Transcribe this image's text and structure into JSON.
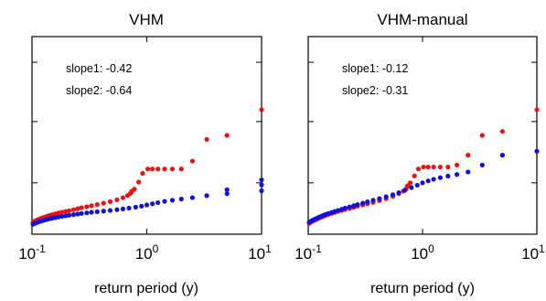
{
  "colors": {
    "series_a": "#ee1111",
    "series_b": "#1111dd",
    "axis": "#000000"
  },
  "chart_data": [
    {
      "type": "scatter",
      "title": "VHM",
      "xlabel": "return period (y)",
      "ylabel": "",
      "xscale": "log",
      "xlim": [
        0.1,
        10
      ],
      "ylim": [
        0,
        1
      ],
      "x_ticks": [
        {
          "base": "10",
          "exp": "-1",
          "value": 0.1
        },
        {
          "base": "10",
          "exp": "0",
          "value": 1
        },
        {
          "base": "10",
          "exp": "1",
          "value": 10
        }
      ],
      "y_ticks": [
        0.26,
        0.57,
        0.87
      ],
      "grid": false,
      "annotations": [
        "slope1: -0.42",
        "slope2: -0.64"
      ],
      "series": [
        {
          "color": "#ee1111",
          "points": [
            [
              0.102,
              0.06
            ],
            [
              0.105,
              0.065
            ],
            [
              0.109,
              0.07
            ],
            [
              0.113,
              0.074
            ],
            [
              0.118,
              0.079
            ],
            [
              0.123,
              0.083
            ],
            [
              0.129,
              0.087
            ],
            [
              0.135,
              0.091
            ],
            [
              0.142,
              0.095
            ],
            [
              0.15,
              0.099
            ],
            [
              0.16,
              0.103
            ],
            [
              0.17,
              0.107
            ],
            [
              0.182,
              0.111
            ],
            [
              0.196,
              0.115
            ],
            [
              0.21,
              0.119
            ],
            [
              0.23,
              0.124
            ],
            [
              0.25,
              0.129
            ],
            [
              0.27,
              0.134
            ],
            [
              0.3,
              0.139
            ],
            [
              0.33,
              0.144
            ],
            [
              0.37,
              0.15
            ],
            [
              0.42,
              0.157
            ],
            [
              0.48,
              0.165
            ],
            [
              0.55,
              0.174
            ],
            [
              0.62,
              0.185
            ],
            [
              0.68,
              0.196
            ],
            [
              0.72,
              0.206
            ],
            [
              0.74,
              0.217
            ],
            [
              0.78,
              0.228
            ],
            [
              0.85,
              0.264
            ],
            [
              0.92,
              0.308
            ],
            [
              1.02,
              0.33
            ],
            [
              1.12,
              0.33
            ],
            [
              1.25,
              0.33
            ],
            [
              1.43,
              0.33
            ],
            [
              1.67,
              0.33
            ],
            [
              2.0,
              0.33
            ],
            [
              2.5,
              0.37
            ],
            [
              3.33,
              0.48
            ],
            [
              5.0,
              0.5
            ],
            [
              10.0,
              0.63
            ]
          ]
        },
        {
          "color": "#1111dd",
          "points": [
            [
              0.102,
              0.05
            ],
            [
              0.105,
              0.054
            ],
            [
              0.109,
              0.058
            ],
            [
              0.113,
              0.061
            ],
            [
              0.118,
              0.065
            ],
            [
              0.123,
              0.068
            ],
            [
              0.129,
              0.072
            ],
            [
              0.135,
              0.075
            ],
            [
              0.142,
              0.078
            ],
            [
              0.15,
              0.081
            ],
            [
              0.16,
              0.084
            ],
            [
              0.17,
              0.087
            ],
            [
              0.182,
              0.09
            ],
            [
              0.196,
              0.093
            ],
            [
              0.21,
              0.096
            ],
            [
              0.23,
              0.099
            ],
            [
              0.25,
              0.102
            ],
            [
              0.27,
              0.105
            ],
            [
              0.3,
              0.108
            ],
            [
              0.33,
              0.111
            ],
            [
              0.37,
              0.114
            ],
            [
              0.42,
              0.117
            ],
            [
              0.48,
              0.12
            ],
            [
              0.55,
              0.124
            ],
            [
              0.62,
              0.128
            ],
            [
              0.7,
              0.132
            ],
            [
              0.8,
              0.137
            ],
            [
              0.9,
              0.142
            ],
            [
              1.0,
              0.148
            ],
            [
              1.12,
              0.154
            ],
            [
              1.25,
              0.16
            ],
            [
              1.43,
              0.166
            ],
            [
              1.67,
              0.172
            ],
            [
              2.0,
              0.178
            ],
            [
              2.5,
              0.185
            ],
            [
              3.33,
              0.195
            ],
            [
              5.0,
              0.205
            ],
            [
              5.0,
              0.225
            ],
            [
              10.0,
              0.22
            ],
            [
              10.0,
              0.25
            ],
            [
              10.0,
              0.275
            ]
          ]
        }
      ]
    },
    {
      "type": "scatter",
      "title": "VHM-manual",
      "xlabel": "return period (y)",
      "ylabel": "",
      "xscale": "log",
      "xlim": [
        0.1,
        10
      ],
      "ylim": [
        0,
        1
      ],
      "x_ticks": [
        {
          "base": "10",
          "exp": "-1",
          "value": 0.1
        },
        {
          "base": "10",
          "exp": "0",
          "value": 1
        },
        {
          "base": "10",
          "exp": "1",
          "value": 10
        }
      ],
      "y_ticks": [
        0.26,
        0.57,
        0.87
      ],
      "grid": false,
      "annotations": [
        "slope1: -0.12",
        "slope2: -0.31"
      ],
      "series": [
        {
          "color": "#ee1111",
          "points": [
            [
              0.102,
              0.055
            ],
            [
              0.105,
              0.06
            ],
            [
              0.109,
              0.065
            ],
            [
              0.113,
              0.07
            ],
            [
              0.118,
              0.075
            ],
            [
              0.123,
              0.08
            ],
            [
              0.129,
              0.085
            ],
            [
              0.135,
              0.09
            ],
            [
              0.142,
              0.095
            ],
            [
              0.15,
              0.1
            ],
            [
              0.16,
              0.105
            ],
            [
              0.17,
              0.11
            ],
            [
              0.182,
              0.115
            ],
            [
              0.196,
              0.12
            ],
            [
              0.21,
              0.125
            ],
            [
              0.23,
              0.13
            ],
            [
              0.25,
              0.136
            ],
            [
              0.27,
              0.142
            ],
            [
              0.3,
              0.148
            ],
            [
              0.33,
              0.154
            ],
            [
              0.37,
              0.161
            ],
            [
              0.42,
              0.17
            ],
            [
              0.48,
              0.18
            ],
            [
              0.55,
              0.192
            ],
            [
              0.62,
              0.205
            ],
            [
              0.68,
              0.218
            ],
            [
              0.72,
              0.23
            ],
            [
              0.74,
              0.245
            ],
            [
              0.78,
              0.26
            ],
            [
              0.85,
              0.295
            ],
            [
              0.92,
              0.33
            ],
            [
              1.02,
              0.34
            ],
            [
              1.12,
              0.34
            ],
            [
              1.25,
              0.34
            ],
            [
              1.43,
              0.34
            ],
            [
              1.67,
              0.34
            ],
            [
              2.0,
              0.35
            ],
            [
              2.5,
              0.4
            ],
            [
              3.33,
              0.5
            ],
            [
              5.0,
              0.52
            ],
            [
              10.0,
              0.63
            ]
          ]
        },
        {
          "color": "#1111dd",
          "points": [
            [
              0.102,
              0.06
            ],
            [
              0.105,
              0.065
            ],
            [
              0.109,
              0.07
            ],
            [
              0.113,
              0.075
            ],
            [
              0.118,
              0.08
            ],
            [
              0.123,
              0.085
            ],
            [
              0.129,
              0.09
            ],
            [
              0.135,
              0.095
            ],
            [
              0.142,
              0.1
            ],
            [
              0.15,
              0.105
            ],
            [
              0.16,
              0.11
            ],
            [
              0.17,
              0.115
            ],
            [
              0.182,
              0.12
            ],
            [
              0.196,
              0.126
            ],
            [
              0.21,
              0.132
            ],
            [
              0.23,
              0.138
            ],
            [
              0.25,
              0.144
            ],
            [
              0.27,
              0.15
            ],
            [
              0.3,
              0.157
            ],
            [
              0.33,
              0.164
            ],
            [
              0.37,
              0.172
            ],
            [
              0.42,
              0.18
            ],
            [
              0.48,
              0.19
            ],
            [
              0.55,
              0.2
            ],
            [
              0.62,
              0.21
            ],
            [
              0.7,
              0.222
            ],
            [
              0.8,
              0.236
            ],
            [
              0.9,
              0.248
            ],
            [
              1.0,
              0.26
            ],
            [
              1.12,
              0.27
            ],
            [
              1.25,
              0.278
            ],
            [
              1.43,
              0.286
            ],
            [
              1.67,
              0.294
            ],
            [
              2.0,
              0.302
            ],
            [
              2.5,
              0.315
            ],
            [
              3.33,
              0.35
            ],
            [
              5.0,
              0.4
            ],
            [
              10.0,
              0.42
            ]
          ]
        }
      ]
    }
  ]
}
